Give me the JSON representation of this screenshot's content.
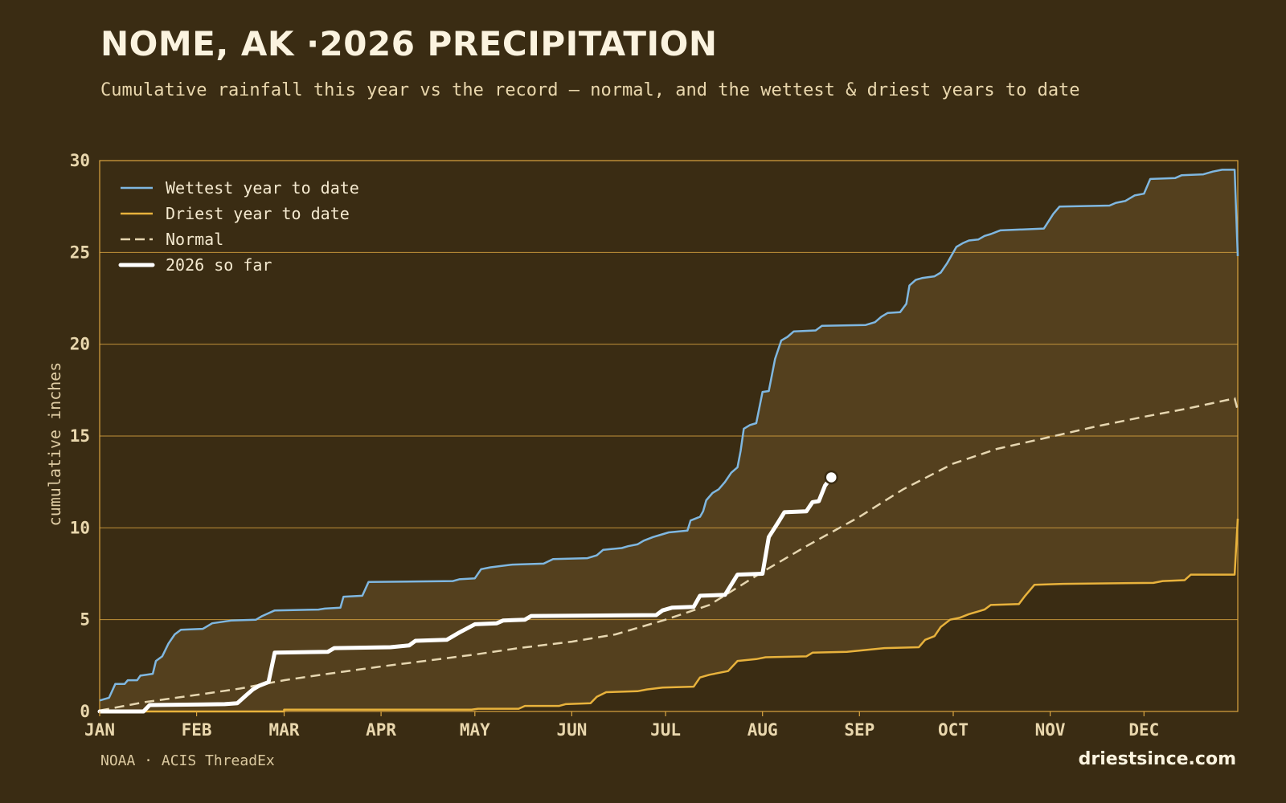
{
  "header": {
    "title": "NOME, AK ·2026 PRECIPITATION",
    "subtitle": "Cumulative rainfall this year vs the record — normal, and the wettest & driest years to date"
  },
  "footer": {
    "source": "NOAA · ACIS ThreadEx",
    "brand": "driestsince.com"
  },
  "colors": {
    "background": "#3a2c13",
    "band_fill": "#54401e",
    "grid": "#d9a441",
    "wettest": "#7fb7e0",
    "driest": "#e8b23c",
    "normal": "#e6d6b0",
    "current": "#ffffff"
  },
  "chart_data": {
    "type": "line",
    "title": "NOME, AK ·2026 PRECIPITATION",
    "xlabel": "",
    "ylabel": "cumulative inches",
    "xlim": [
      "2026-01-01",
      "2026-12-31"
    ],
    "ylim": [
      0,
      30
    ],
    "month_ticks": [
      {
        "label": "JAN",
        "date": "2026-01-01"
      },
      {
        "label": "FEB",
        "date": "2026-02-01"
      },
      {
        "label": "MAR",
        "date": "2026-03-01"
      },
      {
        "label": "APR",
        "date": "2026-04-01"
      },
      {
        "label": "MAY",
        "date": "2026-05-01"
      },
      {
        "label": "JUN",
        "date": "2026-06-01"
      },
      {
        "label": "JUL",
        "date": "2026-07-01"
      },
      {
        "label": "AUG",
        "date": "2026-08-01"
      },
      {
        "label": "SEP",
        "date": "2026-09-01"
      },
      {
        "label": "OCT",
        "date": "2026-10-01"
      },
      {
        "label": "NOV",
        "date": "2026-11-01"
      },
      {
        "label": "DEC",
        "date": "2026-12-01"
      }
    ],
    "y_ticks": [
      0,
      5,
      10,
      15,
      20,
      25,
      30
    ],
    "grid": true,
    "legend_position": "top-left",
    "legend": [
      "Wettest year to date",
      "Driest year to date",
      "Normal",
      "2026 so far"
    ],
    "band": {
      "upper": "Wettest year to date",
      "lower": "Driest year to date"
    },
    "series": [
      {
        "name": "Wettest year to date",
        "style": "solid",
        "points": [
          [
            "2026-01-01",
            0.6
          ],
          [
            "2026-01-04",
            0.75
          ],
          [
            "2026-01-06",
            1.5
          ],
          [
            "2026-01-09",
            1.5
          ],
          [
            "2026-01-10",
            1.7
          ],
          [
            "2026-01-13",
            1.7
          ],
          [
            "2026-01-14",
            1.95
          ],
          [
            "2026-01-18",
            2.05
          ],
          [
            "2026-01-19",
            2.75
          ],
          [
            "2026-01-21",
            3.0
          ],
          [
            "2026-01-23",
            3.7
          ],
          [
            "2026-01-25",
            4.2
          ],
          [
            "2026-01-27",
            4.45
          ],
          [
            "2026-02-03",
            4.5
          ],
          [
            "2026-02-06",
            4.8
          ],
          [
            "2026-02-12",
            4.95
          ],
          [
            "2026-02-20",
            5.0
          ],
          [
            "2026-02-22",
            5.2
          ],
          [
            "2026-02-26",
            5.5
          ],
          [
            "2026-03-12",
            5.55
          ],
          [
            "2026-03-14",
            5.6
          ],
          [
            "2026-03-19",
            5.65
          ],
          [
            "2026-03-20",
            6.25
          ],
          [
            "2026-03-26",
            6.3
          ],
          [
            "2026-03-28",
            7.05
          ],
          [
            "2026-04-24",
            7.1
          ],
          [
            "2026-04-26",
            7.2
          ],
          [
            "2026-05-01",
            7.25
          ],
          [
            "2026-05-03",
            7.75
          ],
          [
            "2026-05-06",
            7.85
          ],
          [
            "2026-05-13",
            8.0
          ],
          [
            "2026-05-23",
            8.05
          ],
          [
            "2026-05-26",
            8.3
          ],
          [
            "2026-06-06",
            8.35
          ],
          [
            "2026-06-09",
            8.5
          ],
          [
            "2026-06-11",
            8.8
          ],
          [
            "2026-06-17",
            8.9
          ],
          [
            "2026-06-19",
            9.0
          ],
          [
            "2026-06-22",
            9.1
          ],
          [
            "2026-06-24",
            9.3
          ],
          [
            "2026-06-27",
            9.5
          ],
          [
            "2026-06-29",
            9.6
          ],
          [
            "2026-07-02",
            9.75
          ],
          [
            "2026-07-08",
            9.85
          ],
          [
            "2026-07-09",
            10.4
          ],
          [
            "2026-07-12",
            10.6
          ],
          [
            "2026-07-13",
            10.9
          ],
          [
            "2026-07-14",
            11.5
          ],
          [
            "2026-07-16",
            11.9
          ],
          [
            "2026-07-18",
            12.1
          ],
          [
            "2026-07-20",
            12.5
          ],
          [
            "2026-07-22",
            13.0
          ],
          [
            "2026-07-24",
            13.3
          ],
          [
            "2026-07-25",
            14.2
          ],
          [
            "2026-07-26",
            15.4
          ],
          [
            "2026-07-28",
            15.6
          ],
          [
            "2026-07-30",
            15.7
          ],
          [
            "2026-08-01",
            17.4
          ],
          [
            "2026-08-03",
            17.45
          ],
          [
            "2026-08-05",
            19.2
          ],
          [
            "2026-08-07",
            20.2
          ],
          [
            "2026-08-09",
            20.4
          ],
          [
            "2026-08-11",
            20.7
          ],
          [
            "2026-08-18",
            20.75
          ],
          [
            "2026-08-20",
            21.0
          ],
          [
            "2026-09-03",
            21.05
          ],
          [
            "2026-09-06",
            21.2
          ],
          [
            "2026-09-08",
            21.5
          ],
          [
            "2026-09-10",
            21.7
          ],
          [
            "2026-09-14",
            21.75
          ],
          [
            "2026-09-16",
            22.2
          ],
          [
            "2026-09-17",
            23.2
          ],
          [
            "2026-09-19",
            23.5
          ],
          [
            "2026-09-21",
            23.6
          ],
          [
            "2026-09-25",
            23.7
          ],
          [
            "2026-09-27",
            23.9
          ],
          [
            "2026-09-29",
            24.4
          ],
          [
            "2026-10-02",
            25.3
          ],
          [
            "2026-10-04",
            25.5
          ],
          [
            "2026-10-06",
            25.65
          ],
          [
            "2026-10-09",
            25.7
          ],
          [
            "2026-10-11",
            25.9
          ],
          [
            "2026-10-13",
            26.0
          ],
          [
            "2026-10-16",
            26.2
          ],
          [
            "2026-10-30",
            26.3
          ],
          [
            "2026-11-02",
            27.1
          ],
          [
            "2026-11-04",
            27.5
          ],
          [
            "2026-11-20",
            27.55
          ],
          [
            "2026-11-22",
            27.7
          ],
          [
            "2026-11-25",
            27.8
          ],
          [
            "2026-11-28",
            28.1
          ],
          [
            "2026-12-01",
            28.2
          ],
          [
            "2026-12-03",
            29.0
          ],
          [
            "2026-12-11",
            29.05
          ],
          [
            "2026-12-13",
            29.2
          ],
          [
            "2026-12-20",
            29.25
          ],
          [
            "2026-12-23",
            29.4
          ],
          [
            "2026-12-26",
            29.5
          ],
          [
            "2026-12-30",
            29.5
          ],
          [
            "2026-12-31",
            24.8
          ]
        ]
      },
      {
        "name": "Driest year to date",
        "style": "solid",
        "points": [
          [
            "2026-01-01",
            0.0
          ],
          [
            "2026-02-29",
            0.0
          ],
          [
            "2026-03-01",
            0.1
          ],
          [
            "2026-04-30",
            0.1
          ],
          [
            "2026-05-02",
            0.15
          ],
          [
            "2026-05-15",
            0.15
          ],
          [
            "2026-05-17",
            0.3
          ],
          [
            "2026-05-28",
            0.3
          ],
          [
            "2026-05-30",
            0.4
          ],
          [
            "2026-06-07",
            0.45
          ],
          [
            "2026-06-09",
            0.8
          ],
          [
            "2026-06-12",
            1.05
          ],
          [
            "2026-06-22",
            1.1
          ],
          [
            "2026-06-25",
            1.2
          ],
          [
            "2026-06-30",
            1.3
          ],
          [
            "2026-07-10",
            1.35
          ],
          [
            "2026-07-12",
            1.85
          ],
          [
            "2026-07-15",
            2.0
          ],
          [
            "2026-07-21",
            2.2
          ],
          [
            "2026-07-24",
            2.75
          ],
          [
            "2026-07-30",
            2.85
          ],
          [
            "2026-08-02",
            2.95
          ],
          [
            "2026-08-15",
            3.0
          ],
          [
            "2026-08-17",
            3.2
          ],
          [
            "2026-08-28",
            3.25
          ],
          [
            "2026-09-09",
            3.45
          ],
          [
            "2026-09-20",
            3.5
          ],
          [
            "2026-09-22",
            3.9
          ],
          [
            "2026-09-25",
            4.1
          ],
          [
            "2026-09-27",
            4.6
          ],
          [
            "2026-09-30",
            5.0
          ],
          [
            "2026-10-03",
            5.1
          ],
          [
            "2026-10-06",
            5.3
          ],
          [
            "2026-10-09",
            5.45
          ],
          [
            "2026-10-11",
            5.55
          ],
          [
            "2026-10-13",
            5.8
          ],
          [
            "2026-10-22",
            5.85
          ],
          [
            "2026-10-24",
            6.3
          ],
          [
            "2026-10-27",
            6.9
          ],
          [
            "2026-11-05",
            6.95
          ],
          [
            "2026-12-04",
            7.0
          ],
          [
            "2026-12-07",
            7.1
          ],
          [
            "2026-12-14",
            7.15
          ],
          [
            "2026-12-16",
            7.45
          ],
          [
            "2026-12-30",
            7.45
          ],
          [
            "2026-12-31",
            10.5
          ]
        ]
      },
      {
        "name": "Normal",
        "style": "dashed",
        "points": [
          [
            "2026-01-01",
            0.05
          ],
          [
            "2026-01-15",
            0.5
          ],
          [
            "2026-02-01",
            0.9
          ],
          [
            "2026-02-15",
            1.25
          ],
          [
            "2026-03-01",
            1.7
          ],
          [
            "2026-03-15",
            2.05
          ],
          [
            "2026-04-01",
            2.45
          ],
          [
            "2026-04-15",
            2.75
          ],
          [
            "2026-05-01",
            3.1
          ],
          [
            "2026-05-15",
            3.45
          ],
          [
            "2026-06-01",
            3.8
          ],
          [
            "2026-06-15",
            4.2
          ],
          [
            "2026-07-01",
            5.0
          ],
          [
            "2026-07-15",
            5.8
          ],
          [
            "2026-08-01",
            7.6
          ],
          [
            "2026-08-15",
            9.0
          ],
          [
            "2026-09-01",
            10.6
          ],
          [
            "2026-09-15",
            12.1
          ],
          [
            "2026-10-01",
            13.5
          ],
          [
            "2026-10-15",
            14.3
          ],
          [
            "2026-11-01",
            14.95
          ],
          [
            "2026-11-15",
            15.5
          ],
          [
            "2026-12-01",
            16.05
          ],
          [
            "2026-12-15",
            16.5
          ],
          [
            "2026-12-30",
            17.05
          ],
          [
            "2026-12-31",
            16.4
          ]
        ]
      },
      {
        "name": "2026 so far",
        "style": "bold",
        "points": [
          [
            "2026-01-01",
            0.0
          ],
          [
            "2026-01-15",
            0.0
          ],
          [
            "2026-01-17",
            0.35
          ],
          [
            "2026-02-10",
            0.4
          ],
          [
            "2026-02-14",
            0.45
          ],
          [
            "2026-02-17",
            0.9
          ],
          [
            "2026-02-19",
            1.2
          ],
          [
            "2026-02-21",
            1.4
          ],
          [
            "2026-02-24",
            1.6
          ],
          [
            "2026-02-26",
            3.2
          ],
          [
            "2026-03-15",
            3.25
          ],
          [
            "2026-03-17",
            3.45
          ],
          [
            "2026-04-04",
            3.5
          ],
          [
            "2026-04-10",
            3.6
          ],
          [
            "2026-04-12",
            3.85
          ],
          [
            "2026-04-22",
            3.9
          ],
          [
            "2026-04-26",
            4.3
          ],
          [
            "2026-05-01",
            4.75
          ],
          [
            "2026-05-08",
            4.8
          ],
          [
            "2026-05-10",
            4.95
          ],
          [
            "2026-05-17",
            5.0
          ],
          [
            "2026-05-19",
            5.2
          ],
          [
            "2026-06-28",
            5.25
          ],
          [
            "2026-06-30",
            5.5
          ],
          [
            "2026-07-03",
            5.65
          ],
          [
            "2026-07-10",
            5.7
          ],
          [
            "2026-07-12",
            6.3
          ],
          [
            "2026-07-20",
            6.35
          ],
          [
            "2026-07-22",
            6.9
          ],
          [
            "2026-07-24",
            7.45
          ],
          [
            "2026-08-01",
            7.5
          ],
          [
            "2026-08-03",
            9.5
          ],
          [
            "2026-08-06",
            10.3
          ],
          [
            "2026-08-08",
            10.85
          ],
          [
            "2026-08-15",
            10.9
          ],
          [
            "2026-08-17",
            11.4
          ],
          [
            "2026-08-19",
            11.45
          ],
          [
            "2026-08-21",
            12.3
          ],
          [
            "2026-08-23",
            12.75
          ]
        ]
      }
    ],
    "current_point": {
      "date": "2026-08-23",
      "value": 12.75
    }
  }
}
